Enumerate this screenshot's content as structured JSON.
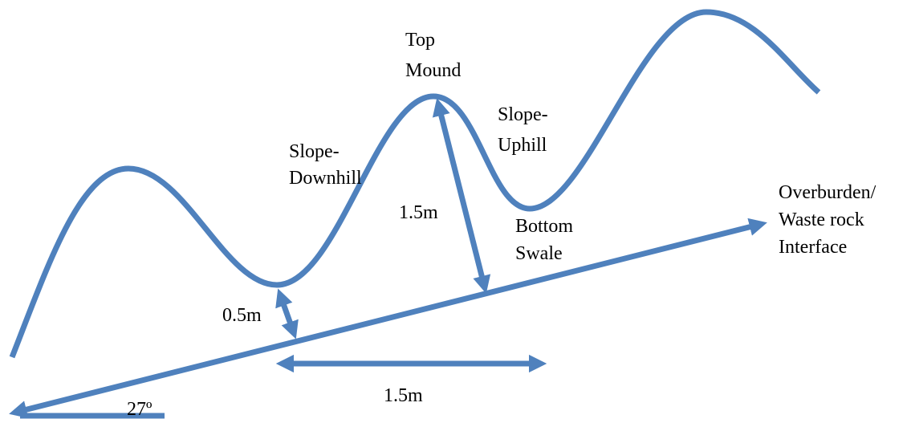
{
  "labels": [
    {
      "lines": [
        "Top",
        "Mound"
      ]
    },
    {
      "lines": [
        "Slope-",
        "Uphill"
      ]
    },
    {
      "lines": [
        "Slope-",
        "Downhill"
      ]
    },
    {
      "lines": [
        "1.5m"
      ]
    },
    {
      "lines": [
        "Bottom",
        "Swale"
      ]
    },
    {
      "lines": [
        "Overburden/",
        "Waste rock",
        "Interface"
      ]
    },
    {
      "lines": [
        "0.5m"
      ]
    },
    {
      "lines": [
        "1.5m"
      ]
    },
    {
      "lines": [
        "27º"
      ]
    }
  ]
}
